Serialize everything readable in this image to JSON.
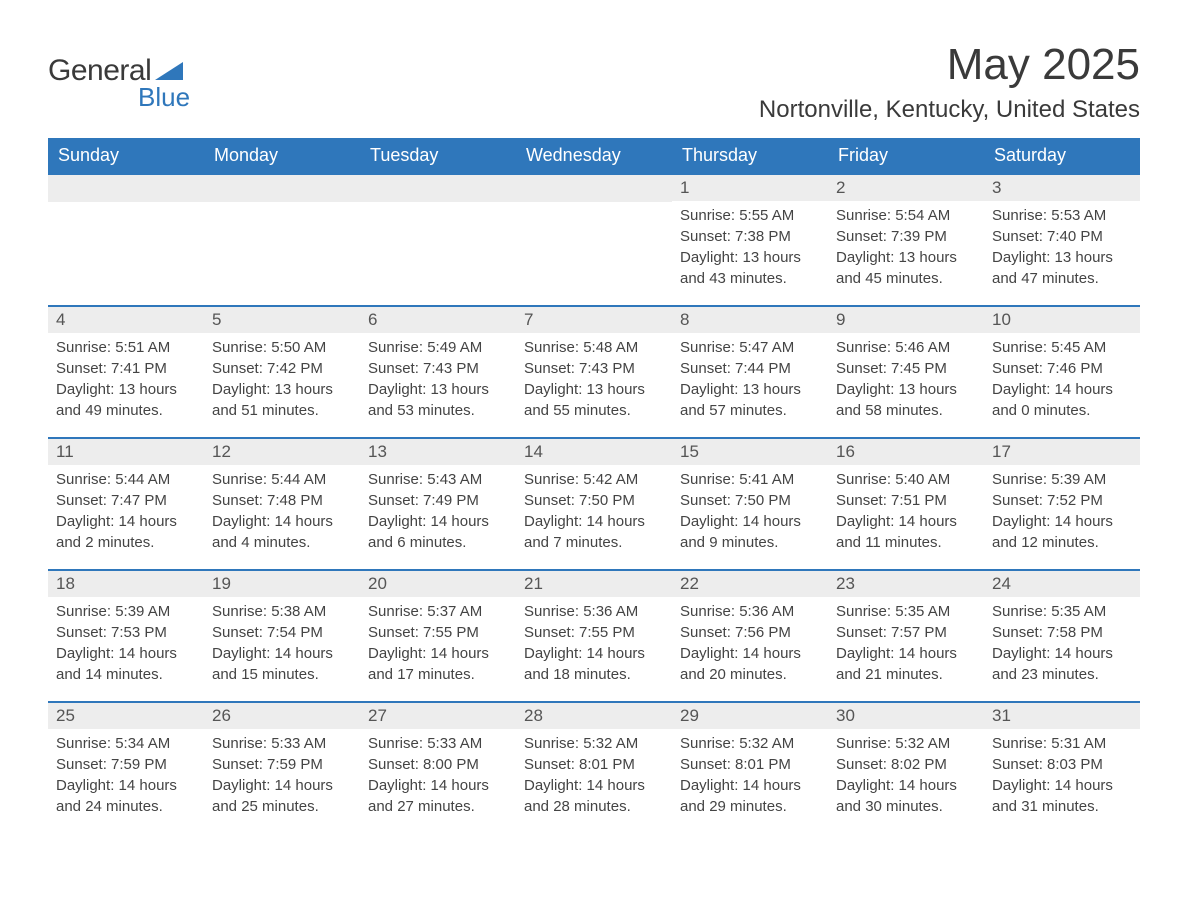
{
  "logo": {
    "line1": "General",
    "line2": "Blue"
  },
  "title": "May 2025",
  "location": "Nortonville, Kentucky, United States",
  "styling": {
    "header_bg": "#2f77bb",
    "header_text": "#ffffff",
    "daynum_bg": "#ededed",
    "daynum_text": "#555555",
    "body_text": "#444444",
    "page_bg": "#ffffff",
    "row_border": "#2f77bb",
    "title_fontsize": 44,
    "location_fontsize": 24,
    "weekday_fontsize": 18,
    "body_fontsize": 15,
    "columns": 7
  },
  "weekdays": [
    "Sunday",
    "Monday",
    "Tuesday",
    "Wednesday",
    "Thursday",
    "Friday",
    "Saturday"
  ],
  "weeks": [
    [
      null,
      null,
      null,
      null,
      {
        "n": "1",
        "sunrise": "5:55 AM",
        "sunset": "7:38 PM",
        "daylight": "13 hours and 43 minutes."
      },
      {
        "n": "2",
        "sunrise": "5:54 AM",
        "sunset": "7:39 PM",
        "daylight": "13 hours and 45 minutes."
      },
      {
        "n": "3",
        "sunrise": "5:53 AM",
        "sunset": "7:40 PM",
        "daylight": "13 hours and 47 minutes."
      }
    ],
    [
      {
        "n": "4",
        "sunrise": "5:51 AM",
        "sunset": "7:41 PM",
        "daylight": "13 hours and 49 minutes."
      },
      {
        "n": "5",
        "sunrise": "5:50 AM",
        "sunset": "7:42 PM",
        "daylight": "13 hours and 51 minutes."
      },
      {
        "n": "6",
        "sunrise": "5:49 AM",
        "sunset": "7:43 PM",
        "daylight": "13 hours and 53 minutes."
      },
      {
        "n": "7",
        "sunrise": "5:48 AM",
        "sunset": "7:43 PM",
        "daylight": "13 hours and 55 minutes."
      },
      {
        "n": "8",
        "sunrise": "5:47 AM",
        "sunset": "7:44 PM",
        "daylight": "13 hours and 57 minutes."
      },
      {
        "n": "9",
        "sunrise": "5:46 AM",
        "sunset": "7:45 PM",
        "daylight": "13 hours and 58 minutes."
      },
      {
        "n": "10",
        "sunrise": "5:45 AM",
        "sunset": "7:46 PM",
        "daylight": "14 hours and 0 minutes."
      }
    ],
    [
      {
        "n": "11",
        "sunrise": "5:44 AM",
        "sunset": "7:47 PM",
        "daylight": "14 hours and 2 minutes."
      },
      {
        "n": "12",
        "sunrise": "5:44 AM",
        "sunset": "7:48 PM",
        "daylight": "14 hours and 4 minutes."
      },
      {
        "n": "13",
        "sunrise": "5:43 AM",
        "sunset": "7:49 PM",
        "daylight": "14 hours and 6 minutes."
      },
      {
        "n": "14",
        "sunrise": "5:42 AM",
        "sunset": "7:50 PM",
        "daylight": "14 hours and 7 minutes."
      },
      {
        "n": "15",
        "sunrise": "5:41 AM",
        "sunset": "7:50 PM",
        "daylight": "14 hours and 9 minutes."
      },
      {
        "n": "16",
        "sunrise": "5:40 AM",
        "sunset": "7:51 PM",
        "daylight": "14 hours and 11 minutes."
      },
      {
        "n": "17",
        "sunrise": "5:39 AM",
        "sunset": "7:52 PM",
        "daylight": "14 hours and 12 minutes."
      }
    ],
    [
      {
        "n": "18",
        "sunrise": "5:39 AM",
        "sunset": "7:53 PM",
        "daylight": "14 hours and 14 minutes."
      },
      {
        "n": "19",
        "sunrise": "5:38 AM",
        "sunset": "7:54 PM",
        "daylight": "14 hours and 15 minutes."
      },
      {
        "n": "20",
        "sunrise": "5:37 AM",
        "sunset": "7:55 PM",
        "daylight": "14 hours and 17 minutes."
      },
      {
        "n": "21",
        "sunrise": "5:36 AM",
        "sunset": "7:55 PM",
        "daylight": "14 hours and 18 minutes."
      },
      {
        "n": "22",
        "sunrise": "5:36 AM",
        "sunset": "7:56 PM",
        "daylight": "14 hours and 20 minutes."
      },
      {
        "n": "23",
        "sunrise": "5:35 AM",
        "sunset": "7:57 PM",
        "daylight": "14 hours and 21 minutes."
      },
      {
        "n": "24",
        "sunrise": "5:35 AM",
        "sunset": "7:58 PM",
        "daylight": "14 hours and 23 minutes."
      }
    ],
    [
      {
        "n": "25",
        "sunrise": "5:34 AM",
        "sunset": "7:59 PM",
        "daylight": "14 hours and 24 minutes."
      },
      {
        "n": "26",
        "sunrise": "5:33 AM",
        "sunset": "7:59 PM",
        "daylight": "14 hours and 25 minutes."
      },
      {
        "n": "27",
        "sunrise": "5:33 AM",
        "sunset": "8:00 PM",
        "daylight": "14 hours and 27 minutes."
      },
      {
        "n": "28",
        "sunrise": "5:32 AM",
        "sunset": "8:01 PM",
        "daylight": "14 hours and 28 minutes."
      },
      {
        "n": "29",
        "sunrise": "5:32 AM",
        "sunset": "8:01 PM",
        "daylight": "14 hours and 29 minutes."
      },
      {
        "n": "30",
        "sunrise": "5:32 AM",
        "sunset": "8:02 PM",
        "daylight": "14 hours and 30 minutes."
      },
      {
        "n": "31",
        "sunrise": "5:31 AM",
        "sunset": "8:03 PM",
        "daylight": "14 hours and 31 minutes."
      }
    ]
  ],
  "labels": {
    "sunrise": "Sunrise:",
    "sunset": "Sunset:",
    "daylight": "Daylight:"
  }
}
